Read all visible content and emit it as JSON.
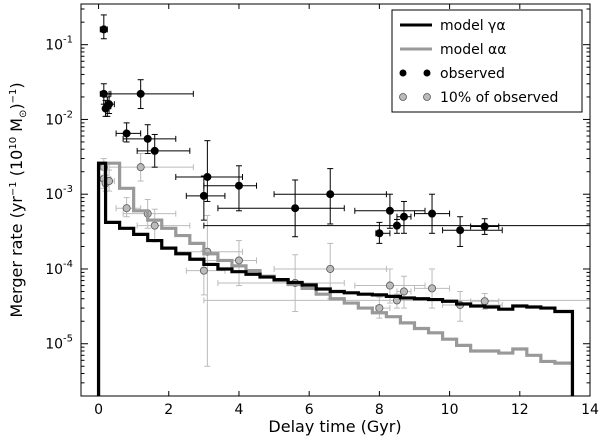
{
  "chart_data": {
    "type": "line",
    "title": "",
    "xlabel": "Delay time (Gyr)",
    "ylabel": "Merger rate (yr⁻¹ (10¹⁰ M⊙)⁻¹)",
    "ylabel_parts": {
      "a": "Merger rate (yr",
      "a_sup": "−1",
      "b": " (10",
      "b_sup": "10",
      "c": " M",
      "c_sub": "⊙",
      "d": ")",
      "d_sup": "−1",
      "e": ")"
    },
    "xlim": [
      -0.5,
      14
    ],
    "ylim": [
      2e-06,
      0.35
    ],
    "yscale": "log",
    "xticks": [
      0,
      2,
      4,
      6,
      8,
      10,
      12,
      14
    ],
    "xtick_labels": [
      "0",
      "2",
      "4",
      "6",
      "8",
      "10",
      "12",
      "14"
    ],
    "yticks": [
      1e-05,
      0.0001,
      0.001,
      0.01,
      0.1
    ],
    "ytick_labels": [
      {
        "base": "10",
        "exp": "-5"
      },
      {
        "base": "10",
        "exp": "-4"
      },
      {
        "base": "10",
        "exp": "-3"
      },
      {
        "base": "10",
        "exp": "-2"
      },
      {
        "base": "10",
        "exp": "-1"
      }
    ],
    "legend": {
      "placement": "top-right",
      "entries": [
        {
          "label": "model γα",
          "marker": "line",
          "color": "#000000"
        },
        {
          "label": "model αα",
          "marker": "line",
          "color": "#999999"
        },
        {
          "label": "observed",
          "marker": "dot",
          "color": "#000000"
        },
        {
          "label": "10% of observed",
          "marker": "dot",
          "color": "#bbbbbb"
        }
      ]
    },
    "series": [
      {
        "name": "model γα",
        "kind": "step",
        "color": "#000000",
        "edges": [
          0.0,
          0.2,
          0.6,
          1.0,
          1.4,
          1.8,
          2.2,
          2.6,
          3.0,
          3.4,
          3.8,
          4.2,
          4.6,
          5.0,
          5.4,
          5.8,
          6.2,
          6.6,
          7.0,
          7.4,
          7.8,
          8.2,
          8.6,
          9.0,
          9.4,
          9.8,
          10.2,
          10.6,
          11.0,
          11.4,
          11.8,
          12.2,
          12.6,
          13.0,
          13.5
        ],
        "values": [
          0.0026,
          0.00042,
          0.00035,
          0.00029,
          0.00024,
          0.00019,
          0.00016,
          0.000135,
          0.000115,
          0.0001,
          9.2e-05,
          8.5e-05,
          7.8e-05,
          7.2e-05,
          6.6e-05,
          6.1e-05,
          5.4e-05,
          5e-05,
          4.8e-05,
          4.6e-05,
          4.5e-05,
          4.3e-05,
          4.1e-05,
          4e-05,
          3.9e-05,
          3.7e-05,
          3.4e-05,
          3.2e-05,
          3.1e-05,
          2.9e-05,
          3.2e-05,
          3.1e-05,
          3e-05,
          2.7e-05
        ],
        "floor": 2e-06
      },
      {
        "name": "model αα",
        "kind": "step",
        "color": "#999999",
        "edges": [
          0.0,
          0.2,
          0.6,
          1.0,
          1.4,
          1.8,
          2.2,
          2.6,
          3.0,
          3.4,
          3.8,
          4.2,
          4.6,
          5.0,
          5.4,
          5.8,
          6.2,
          6.6,
          7.0,
          7.4,
          7.8,
          8.2,
          8.6,
          9.0,
          9.4,
          9.8,
          10.2,
          10.6,
          11.0,
          11.4,
          11.8,
          12.2,
          12.6,
          13.0,
          13.5
        ],
        "values": [
          0.0026,
          0.0026,
          0.0012,
          0.0006,
          0.00045,
          0.00035,
          0.00028,
          0.00022,
          0.00016,
          0.00013,
          0.00011,
          9.5e-05,
          8e-05,
          7e-05,
          6.2e-05,
          5.5e-05,
          4.6e-05,
          4e-05,
          3.5e-05,
          3e-05,
          2.6e-05,
          2.3e-05,
          1.9e-05,
          1.6e-05,
          1.4e-05,
          1.15e-05,
          9.5e-06,
          8e-06,
          8e-06,
          7.5e-06,
          8.5e-06,
          7e-06,
          5.8e-06,
          5.5e-06
        ],
        "floor": 2e-06
      },
      {
        "name": "observed",
        "kind": "errorbar",
        "color": "#000000",
        "points": [
          {
            "x": 0.15,
            "y": 0.16,
            "xerr": [
              0.1,
              0.1
            ],
            "yerr": [
              0.04,
              0.09
            ]
          },
          {
            "x": 0.15,
            "y": 0.022,
            "xerr": [
              0.1,
              0.2
            ],
            "yerr": [
              0.006,
              0.008
            ]
          },
          {
            "x": 0.25,
            "y": 0.015,
            "xerr": [
              0.1,
              0.1
            ],
            "yerr": [
              0.004,
              0.005
            ]
          },
          {
            "x": 0.2,
            "y": 0.014,
            "xerr": [
              0.05,
              0.05
            ],
            "yerr": [
              0.003,
              0.004
            ]
          },
          {
            "x": 0.3,
            "y": 0.016,
            "xerr": [
              0.15,
              0.15
            ],
            "yerr": [
              0.004,
              0.006
            ]
          },
          {
            "x": 0.8,
            "y": 0.0065,
            "xerr": [
              0.3,
              0.4
            ],
            "yerr": [
              0.0015,
              0.0025
            ]
          },
          {
            "x": 1.2,
            "y": 0.022,
            "xerr": [
              0.9,
              1.5
            ],
            "yerr": [
              0.008,
              0.012
            ]
          },
          {
            "x": 1.4,
            "y": 0.0055,
            "xerr": [
              0.7,
              0.8
            ],
            "yerr": [
              0.002,
              0.003
            ]
          },
          {
            "x": 1.6,
            "y": 0.0038,
            "xerr": [
              0.5,
              1.0
            ],
            "yerr": [
              0.0015,
              0.0025
            ]
          },
          {
            "x": 3.1,
            "y": 0.0017,
            "xerr": [
              0.9,
              1.0
            ],
            "yerr": [
              0.0009,
              0.0035
            ]
          },
          {
            "x": 3.0,
            "y": 0.00095,
            "xerr": [
              0.5,
              0.6
            ],
            "yerr": [
              0.0005,
              0.0008
            ]
          },
          {
            "x": 4.0,
            "y": 0.0013,
            "xerr": [
              1.0,
              0.5
            ],
            "yerr": [
              0.0007,
              0.0011
            ]
          },
          {
            "x": 5.6,
            "y": 0.00065,
            "xerr": [
              2.2,
              1.4
            ],
            "yerr": [
              0.00038,
              0.0009
            ]
          },
          {
            "x": 6.6,
            "y": 0.001,
            "xerr": [
              1.6,
              1.6
            ],
            "yerr": [
              0.0006,
              0.0012
            ]
          },
          {
            "x": 8.0,
            "y": 0.0003,
            "xerr": [
              0.1,
              0.3
            ],
            "yerr": [
              8e-05,
              0.00012
            ]
          },
          {
            "x": 8.3,
            "y": 0.0006,
            "xerr": [
              1.0,
              1.0
            ],
            "yerr": [
              0.00025,
              0.0004
            ]
          },
          {
            "x": 8.7,
            "y": 0.0005,
            "xerr": [
              0.2,
              0.2
            ],
            "yerr": [
              0.0002,
              0.0003
            ]
          },
          {
            "x": 8.5,
            "y": 0.00038,
            "xerr": [
              5.5,
              5.5
            ],
            "yerr": [
              8e-05,
              8e-05
            ]
          },
          {
            "x": 9.5,
            "y": 0.00055,
            "xerr": [
              0.5,
              0.5
            ],
            "yerr": [
              0.00025,
              0.00045
            ]
          },
          {
            "x": 10.3,
            "y": 0.00033,
            "xerr": [
              0.5,
              1.2
            ],
            "yerr": [
              0.00013,
              0.00017
            ]
          },
          {
            "x": 11.0,
            "y": 0.00037,
            "xerr": [
              0.4,
              0.4
            ],
            "yerr": [
              8e-05,
              0.0001
            ]
          }
        ]
      },
      {
        "name": "10% of observed",
        "kind": "errorbar",
        "color": "#bbbbbb",
        "points": [
          {
            "x": 0.15,
            "y": 0.0023,
            "xerr": [
              0.1,
              0.1
            ],
            "yerr": [
              0.0005,
              0.0007
            ]
          },
          {
            "x": 0.15,
            "y": 0.0016,
            "xerr": [
              0.1,
              0.2
            ],
            "yerr": [
              0.0004,
              0.0005
            ]
          },
          {
            "x": 0.2,
            "y": 0.0014,
            "xerr": [
              0.05,
              0.05
            ],
            "yerr": [
              0.0003,
              0.0004
            ]
          },
          {
            "x": 0.3,
            "y": 0.0015,
            "xerr": [
              0.15,
              0.15
            ],
            "yerr": [
              0.0004,
              0.0006
            ]
          },
          {
            "x": 0.8,
            "y": 0.00065,
            "xerr": [
              0.3,
              0.4
            ],
            "yerr": [
              0.00015,
              0.00025
            ]
          },
          {
            "x": 1.2,
            "y": 0.0023,
            "xerr": [
              0.9,
              1.5
            ],
            "yerr": [
              0.0008,
              0.0012
            ]
          },
          {
            "x": 1.4,
            "y": 0.00055,
            "xerr": [
              0.7,
              0.8
            ],
            "yerr": [
              0.0002,
              0.0003
            ]
          },
          {
            "x": 1.6,
            "y": 0.00038,
            "xerr": [
              0.5,
              1.0
            ],
            "yerr": [
              0.00015,
              0.00025
            ]
          },
          {
            "x": 3.1,
            "y": 0.00017,
            "xerr": [
              0.9,
              1.0
            ],
            "yerr": [
              0.000165,
              0.00035
            ]
          },
          {
            "x": 3.0,
            "y": 9.5e-05,
            "xerr": [
              0.5,
              0.6
            ],
            "yerr": [
              5e-05,
              8e-05
            ]
          },
          {
            "x": 4.0,
            "y": 0.00013,
            "xerr": [
              1.0,
              0.5
            ],
            "yerr": [
              7e-05,
              0.00011
            ]
          },
          {
            "x": 5.6,
            "y": 6.5e-05,
            "xerr": [
              2.2,
              1.4
            ],
            "yerr": [
              3.8e-05,
              9e-05
            ]
          },
          {
            "x": 6.6,
            "y": 0.0001,
            "xerr": [
              1.6,
              1.6
            ],
            "yerr": [
              6e-05,
              0.00012
            ]
          },
          {
            "x": 8.0,
            "y": 3e-05,
            "xerr": [
              0.1,
              0.3
            ],
            "yerr": [
              8e-06,
              1.2e-05
            ]
          },
          {
            "x": 8.3,
            "y": 6e-05,
            "xerr": [
              1.0,
              1.0
            ],
            "yerr": [
              2.5e-05,
              4e-05
            ]
          },
          {
            "x": 8.7,
            "y": 5e-05,
            "xerr": [
              0.2,
              0.2
            ],
            "yerr": [
              2e-05,
              3e-05
            ]
          },
          {
            "x": 8.5,
            "y": 3.8e-05,
            "xerr": [
              5.5,
              5.5
            ],
            "yerr": [
              8e-06,
              8e-06
            ]
          },
          {
            "x": 9.5,
            "y": 5.5e-05,
            "xerr": [
              0.5,
              0.5
            ],
            "yerr": [
              2.5e-05,
              4.5e-05
            ]
          },
          {
            "x": 10.3,
            "y": 3.3e-05,
            "xerr": [
              0.5,
              1.2
            ],
            "yerr": [
              1.3e-05,
              1.7e-05
            ]
          },
          {
            "x": 11.0,
            "y": 3.7e-05,
            "xerr": [
              0.4,
              0.4
            ],
            "yerr": [
              8e-06,
              1e-05
            ]
          }
        ]
      }
    ]
  }
}
